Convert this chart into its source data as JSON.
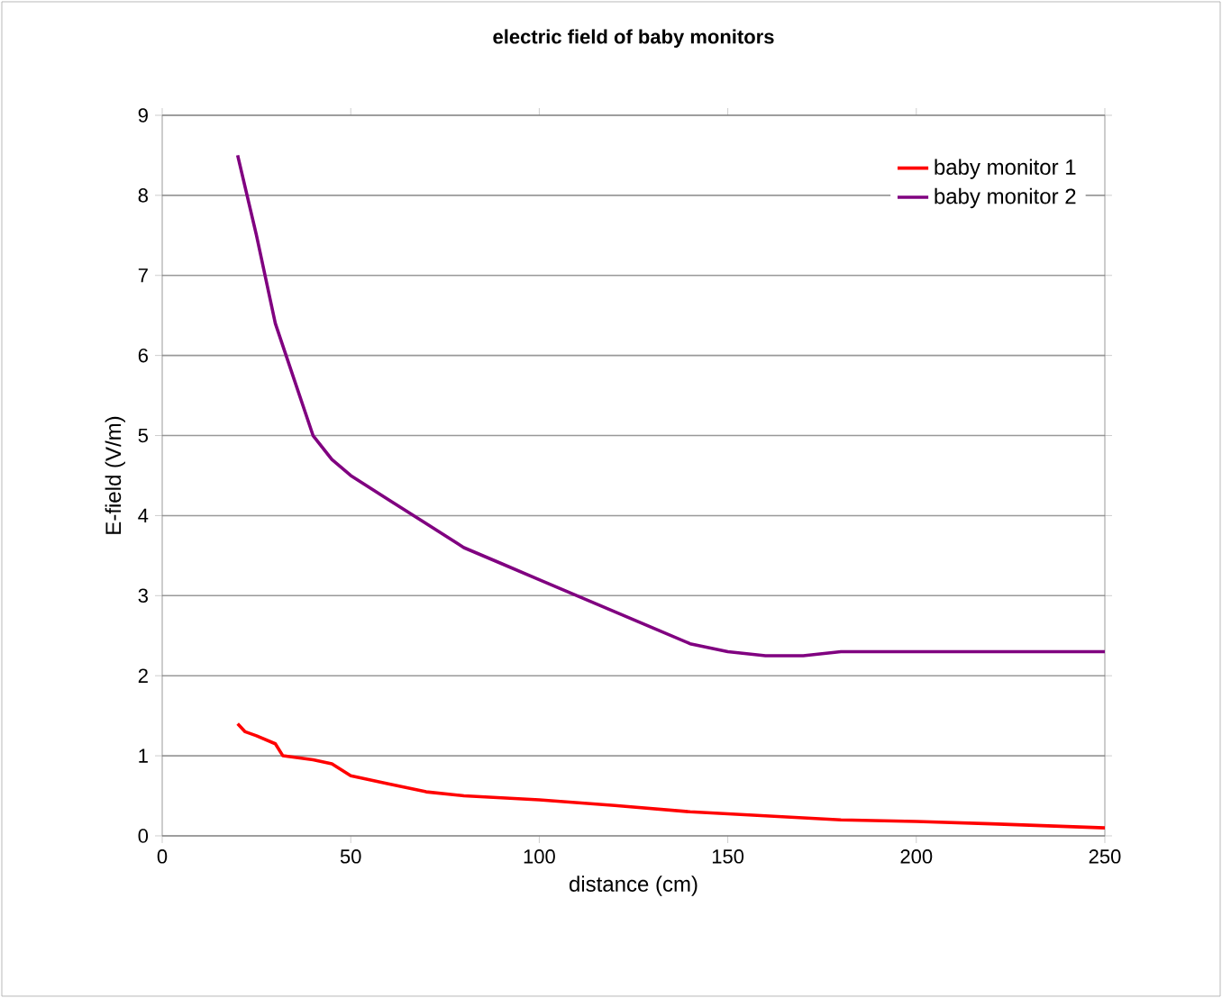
{
  "chart_data": {
    "type": "line",
    "title": "electric field of baby monitors",
    "xlabel": "distance (cm)",
    "ylabel": "E-field (V/m)",
    "xlim": [
      0,
      250
    ],
    "xticks": [
      0,
      50,
      100,
      150,
      200,
      250
    ],
    "ylim": [
      0,
      9
    ],
    "yticks": [
      0,
      1,
      2,
      3,
      4,
      5,
      6,
      7,
      8,
      9
    ],
    "grid": "y",
    "legend": "top right",
    "marker": "none",
    "line_style": "solid",
    "series": [
      {
        "name": "baby monitor 1",
        "color": "#ff0000",
        "x": [
          20,
          22,
          25,
          30,
          32,
          40,
          45,
          50,
          60,
          70,
          80,
          100,
          120,
          140,
          160,
          180,
          200,
          220,
          250
        ],
        "values": [
          1.4,
          1.3,
          1.25,
          1.15,
          1.0,
          0.95,
          0.9,
          0.75,
          0.65,
          0.55,
          0.5,
          0.45,
          0.38,
          0.3,
          0.25,
          0.2,
          0.18,
          0.15,
          0.1
        ]
      },
      {
        "name": "baby monitor 2",
        "color": "#800080",
        "x": [
          20,
          25,
          30,
          35,
          40,
          45,
          50,
          60,
          70,
          80,
          90,
          100,
          110,
          120,
          130,
          140,
          150,
          160,
          170,
          180,
          200,
          220,
          250
        ],
        "values": [
          8.5,
          7.5,
          6.4,
          5.7,
          5.0,
          4.7,
          4.5,
          4.2,
          3.9,
          3.6,
          3.4,
          3.2,
          3.0,
          2.8,
          2.6,
          2.4,
          2.3,
          2.25,
          2.25,
          2.3,
          2.3,
          2.3,
          2.3
        ]
      }
    ]
  }
}
